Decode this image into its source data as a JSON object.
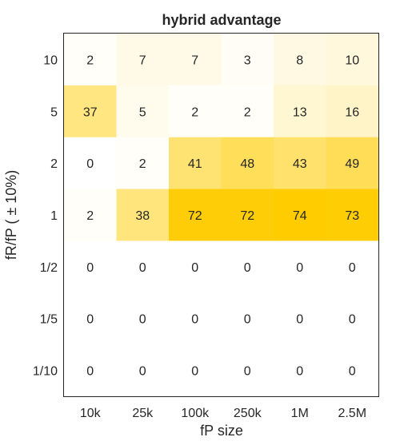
{
  "chart_data": {
    "type": "heatmap",
    "title": "hybrid advantage",
    "xlabel": "fP size",
    "ylabel": "fR/fP  ( ± 10%)",
    "x_categories": [
      "10k",
      "25k",
      "100k",
      "250k",
      "1M",
      "2.5M"
    ],
    "y_categories": [
      "10",
      "5",
      "2",
      "1",
      "1/2",
      "1/5",
      "1/10"
    ],
    "values": [
      [
        2,
        7,
        7,
        3,
        8,
        10
      ],
      [
        37,
        5,
        2,
        2,
        13,
        16
      ],
      [
        0,
        2,
        41,
        48,
        43,
        49
      ],
      [
        2,
        38,
        72,
        72,
        74,
        73
      ],
      [
        0,
        0,
        0,
        0,
        0,
        0
      ],
      [
        0,
        0,
        0,
        0,
        0,
        0
      ],
      [
        0,
        0,
        0,
        0,
        0,
        0
      ]
    ],
    "value_range": [
      0,
      74
    ],
    "colormap": {
      "low": "#ffffff",
      "high": "#ffcc00"
    },
    "grid": false
  }
}
